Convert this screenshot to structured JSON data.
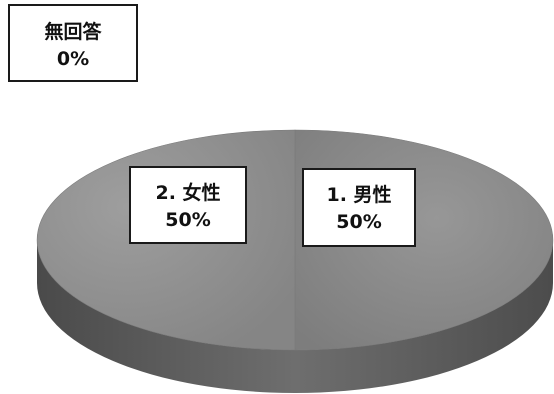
{
  "chart_data": {
    "type": "pie",
    "categories": [
      "1. 男性",
      "2. 女性",
      "無回答"
    ],
    "values": [
      50,
      50,
      0
    ],
    "percent_labels": [
      "50%",
      "50%",
      "0%"
    ],
    "style": "3d",
    "colors": {
      "slice_top": "#8c8c8c",
      "slice_side": "#575757",
      "label_border": "#1a1a1a"
    }
  }
}
